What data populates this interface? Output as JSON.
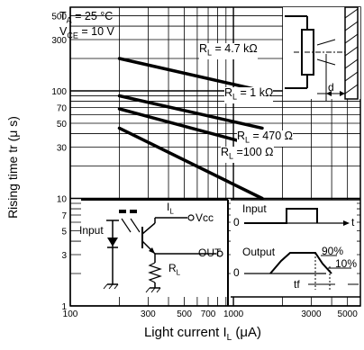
{
  "chart_data": {
    "type": "line",
    "xlabel": "Light current I",
    "xlabel_sub": "L",
    "xlabel_unit": "(μA)",
    "ylabel": "Rising time  tr (μ s)",
    "xscale": "log",
    "yscale": "log",
    "xlim": [
      100,
      6000
    ],
    "ylim": [
      1,
      600
    ],
    "grid": true,
    "x_ticks": [
      "100",
      "300",
      "500",
      "700",
      "1000",
      "3000",
      "5000"
    ],
    "y_ticks": [
      "500",
      "300",
      "100",
      "70",
      "50",
      "30",
      "10",
      "7",
      "5",
      "3",
      "1"
    ],
    "conditions": {
      "ta_label": "T",
      "ta_sub": "A",
      "ta_value": "= 25 °C",
      "vce_label": "V",
      "vce_sub": "CE",
      "vce_value": "= 10 V"
    },
    "series": [
      {
        "name": "R = 4.7 kΩ",
        "label_prefix": "R",
        "label_sub": "L",
        "label_value": "= 4.7 kΩ",
        "x": [
          200,
          1500
        ],
        "y": [
          200,
          100
        ]
      },
      {
        "name": "R = 1 kΩ",
        "label_prefix": "R",
        "label_sub": "L",
        "label_value": "= 1 kΩ",
        "x": [
          200,
          1500
        ],
        "y": [
          90,
          45
        ]
      },
      {
        "name": "R = 470 Ω",
        "label_prefix": "R",
        "label_sub": "L",
        "label_value": "= 470 Ω",
        "x": [
          200,
          1500
        ],
        "y": [
          68,
          30
        ]
      },
      {
        "name": "R = 100 Ω",
        "label_prefix": "R",
        "label_sub": "L",
        "label_value": "=100 Ω",
        "x": [
          200,
          1500
        ],
        "y": [
          45,
          10
        ]
      }
    ],
    "test_circuit": {
      "input_label": "Input",
      "il_label": "I",
      "il_sub": "L",
      "vcc_label": "Vcc",
      "out_label": "OUT",
      "rl_label": "R",
      "rl_sub": "L"
    },
    "waveform": {
      "input_label": "Input",
      "output_label": "Output",
      "zero_top": "0",
      "zero_bottom": "0",
      "t_label": "t",
      "pct90": "90%",
      "pct10": "10%",
      "tf_label": "tf"
    },
    "sensor_diagram": {
      "d_label": "d"
    }
  }
}
